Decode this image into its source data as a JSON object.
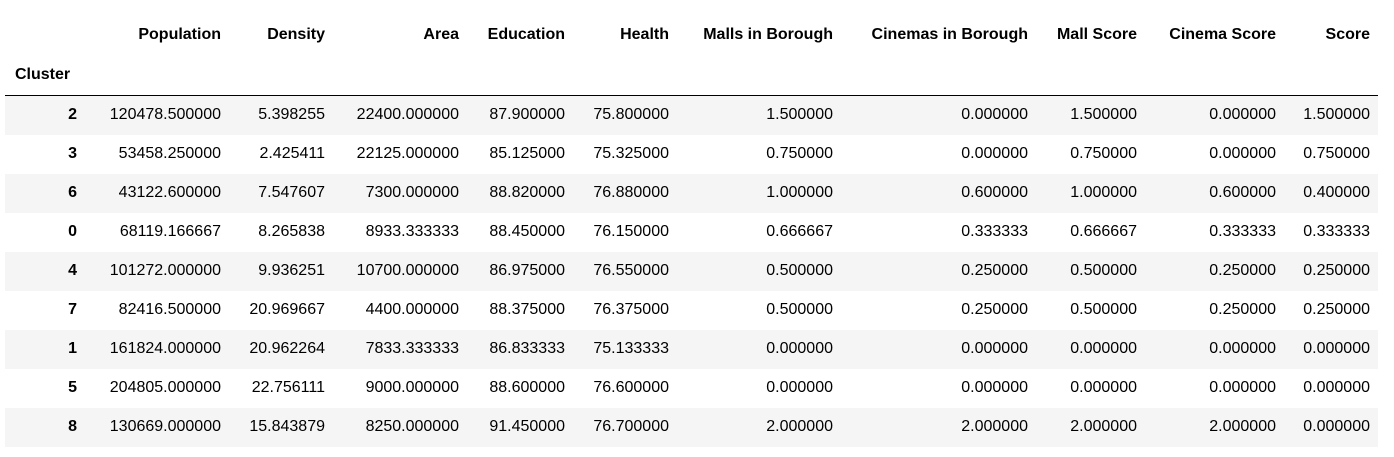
{
  "table": {
    "index_name": "Cluster",
    "columns": [
      "Population",
      "Density",
      "Area",
      "Education",
      "Health",
      "Malls in Borough",
      "Cinemas in Borough",
      "Mall Score",
      "Cinema Score",
      "Score"
    ],
    "rows": [
      {
        "index": "2",
        "cells": [
          "120478.500000",
          "5.398255",
          "22400.000000",
          "87.900000",
          "75.800000",
          "1.500000",
          "0.000000",
          "1.500000",
          "0.000000",
          "1.500000"
        ]
      },
      {
        "index": "3",
        "cells": [
          "53458.250000",
          "2.425411",
          "22125.000000",
          "85.125000",
          "75.325000",
          "0.750000",
          "0.000000",
          "0.750000",
          "0.000000",
          "0.750000"
        ]
      },
      {
        "index": "6",
        "cells": [
          "43122.600000",
          "7.547607",
          "7300.000000",
          "88.820000",
          "76.880000",
          "1.000000",
          "0.600000",
          "1.000000",
          "0.600000",
          "0.400000"
        ]
      },
      {
        "index": "0",
        "cells": [
          "68119.166667",
          "8.265838",
          "8933.333333",
          "88.450000",
          "76.150000",
          "0.666667",
          "0.333333",
          "0.666667",
          "0.333333",
          "0.333333"
        ]
      },
      {
        "index": "4",
        "cells": [
          "101272.000000",
          "9.936251",
          "10700.000000",
          "86.975000",
          "76.550000",
          "0.500000",
          "0.250000",
          "0.500000",
          "0.250000",
          "0.250000"
        ]
      },
      {
        "index": "7",
        "cells": [
          "82416.500000",
          "20.969667",
          "4400.000000",
          "88.375000",
          "76.375000",
          "0.500000",
          "0.250000",
          "0.500000",
          "0.250000",
          "0.250000"
        ]
      },
      {
        "index": "1",
        "cells": [
          "161824.000000",
          "20.962264",
          "7833.333333",
          "86.833333",
          "75.133333",
          "0.000000",
          "0.000000",
          "0.000000",
          "0.000000",
          "0.000000"
        ]
      },
      {
        "index": "5",
        "cells": [
          "204805.000000",
          "22.756111",
          "9000.000000",
          "88.600000",
          "76.600000",
          "0.000000",
          "0.000000",
          "0.000000",
          "0.000000",
          "0.000000"
        ]
      },
      {
        "index": "8",
        "cells": [
          "130669.000000",
          "15.843879",
          "8250.000000",
          "91.450000",
          "76.700000",
          "2.000000",
          "2.000000",
          "2.000000",
          "2.000000",
          "0.000000"
        ]
      }
    ]
  }
}
